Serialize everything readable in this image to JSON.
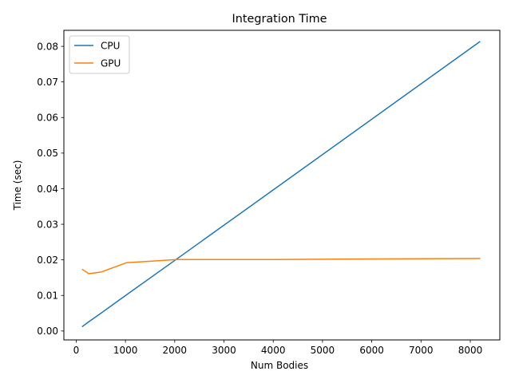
{
  "chart_data": {
    "type": "line",
    "title": "Integration Time",
    "xlabel": "Num Bodies",
    "ylabel": "Time (sec)",
    "xlim": [
      -250,
      8600
    ],
    "ylim": [
      -0.0025,
      0.0845
    ],
    "xticks": [
      0,
      1000,
      2000,
      3000,
      4000,
      5000,
      6000,
      7000,
      8000
    ],
    "yticks": [
      0.0,
      0.01,
      0.02,
      0.03,
      0.04,
      0.05,
      0.06,
      0.07,
      0.08
    ],
    "xtick_labels": [
      "0",
      "1000",
      "2000",
      "3000",
      "4000",
      "5000",
      "6000",
      "7000",
      "8000"
    ],
    "ytick_labels": [
      "0.00",
      "0.01",
      "0.02",
      "0.03",
      "0.04",
      "0.05",
      "0.06",
      "0.07",
      "0.08"
    ],
    "grid": false,
    "legend_position": "top-left",
    "series": [
      {
        "name": "CPU",
        "color": "#1f77b4",
        "x": [
          128,
          256,
          512,
          1024,
          2048,
          4096,
          8192
        ],
        "y": [
          0.0013,
          0.0026,
          0.0051,
          0.0102,
          0.0203,
          0.0406,
          0.0813
        ]
      },
      {
        "name": "GPU",
        "color": "#ff7f0e",
        "x": [
          128,
          256,
          512,
          1024,
          2048,
          4096,
          8192
        ],
        "y": [
          0.0173,
          0.0161,
          0.0166,
          0.0192,
          0.0201,
          0.0201,
          0.0204
        ]
      }
    ]
  }
}
